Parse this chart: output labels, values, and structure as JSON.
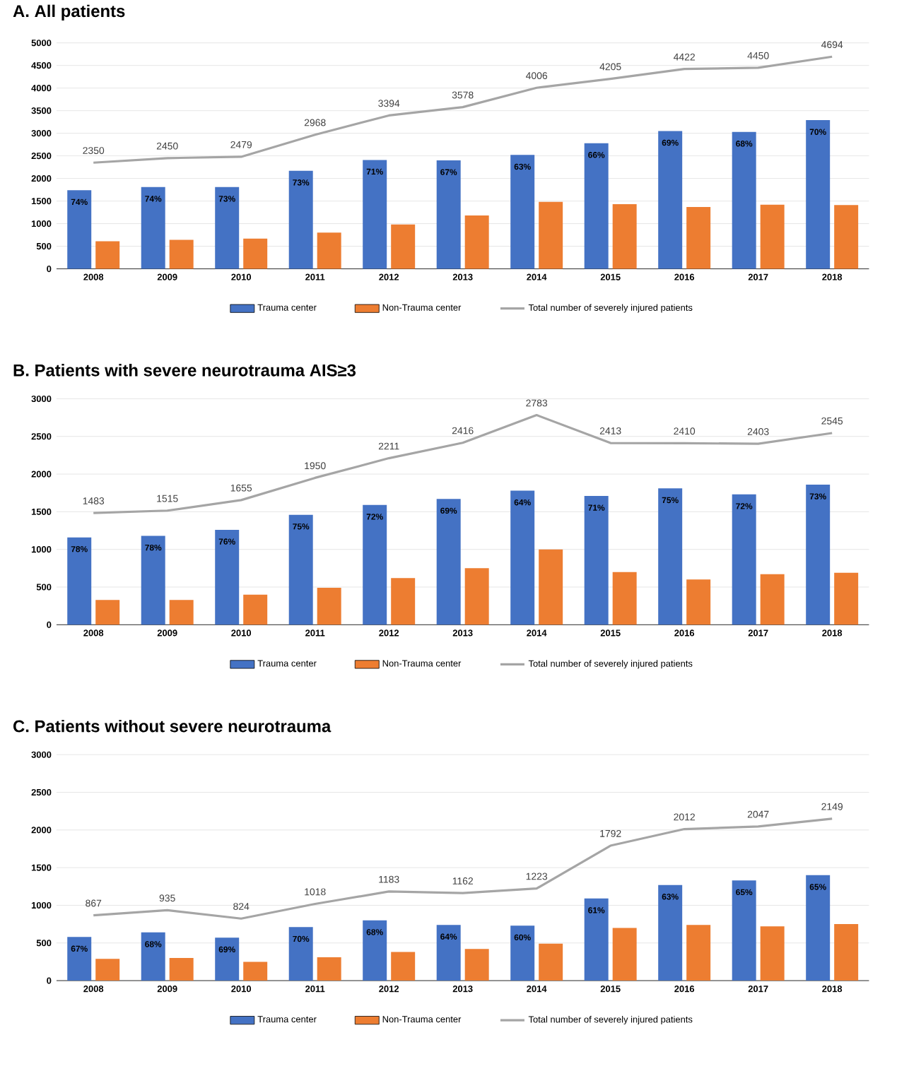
{
  "chart_data": [
    {
      "type": "bar",
      "title": "**A. All patients**",
      "categories": [
        "2008",
        "2009",
        "2010",
        "2011",
        "2012",
        "2013",
        "2014",
        "2015",
        "2016",
        "2017",
        "2018"
      ],
      "ylim": [
        0,
        5000
      ],
      "yticks": [
        0,
        500,
        1000,
        1500,
        2000,
        2500,
        3000,
        3500,
        4000,
        4500,
        5000
      ],
      "grid": "y",
      "legend": "bottom",
      "series": [
        {
          "name": "Trauma center",
          "color": "#4472c4",
          "values": [
            1740,
            1810,
            1810,
            2170,
            2410,
            2400,
            2520,
            2780,
            3050,
            3030,
            3290
          ]
        },
        {
          "name": "Non-Trauma center",
          "color": "#ed7d31",
          "values": [
            610,
            640,
            670,
            800,
            980,
            1180,
            1480,
            1430,
            1370,
            1420,
            1410
          ]
        },
        {
          "name": "Total number of severely injured patients",
          "type": "line",
          "color": "#a5a5a5",
          "values": [
            2350,
            2450,
            2479,
            2968,
            3394,
            3578,
            4006,
            4205,
            4422,
            4450,
            4694
          ],
          "value_labels": [
            "2350",
            "2450",
            "2479",
            "2968",
            "3394",
            "3578",
            "4006",
            "4205",
            "4422",
            "4450",
            "4694"
          ]
        }
      ],
      "annotations": [
        {
          "text": "74%",
          "x": "2008",
          "y": 1740
        },
        {
          "text": "74%",
          "x": "2009",
          "y": 1810
        },
        {
          "text": "73%",
          "x": "2010",
          "y": 1810
        },
        {
          "text": "73%",
          "x": "2011",
          "y": 2170
        },
        {
          "text": "71%",
          "x": "2012",
          "y": 2410
        },
        {
          "text": "67%",
          "x": "2013",
          "y": 2400
        },
        {
          "text": "63%",
          "x": "2014",
          "y": 2520
        },
        {
          "text": "66%",
          "x": "2015",
          "y": 2780
        },
        {
          "text": "69%",
          "x": "2016",
          "y": 3050
        },
        {
          "text": "68%",
          "x": "2017",
          "y": 3030
        },
        {
          "text": "70%",
          "x": "2018",
          "y": 3290
        }
      ]
    },
    {
      "type": "bar",
      "title": "**B. Patients with severe neurotrauma AIS≥3**",
      "categories": [
        "2008",
        "2009",
        "2010",
        "2011",
        "2012",
        "2013",
        "2014",
        "2015",
        "2016",
        "2017",
        "2018"
      ],
      "ylim": [
        0,
        3000
      ],
      "yticks": [
        0,
        500,
        1000,
        1500,
        2000,
        2500,
        3000
      ],
      "grid": "y",
      "legend": "bottom",
      "series": [
        {
          "name": "Trauma center",
          "color": "#4472c4",
          "values": [
            1160,
            1180,
            1260,
            1460,
            1590,
            1670,
            1780,
            1710,
            1810,
            1730,
            1860
          ]
        },
        {
          "name": "Non-Trauma center",
          "color": "#ed7d31",
          "values": [
            330,
            330,
            400,
            490,
            620,
            750,
            1000,
            700,
            600,
            670,
            690
          ]
        },
        {
          "name": "Total number of severely injured patients",
          "type": "line",
          "color": "#a5a5a5",
          "values": [
            1483,
            1515,
            1655,
            1950,
            2211,
            2416,
            2783,
            2413,
            2410,
            2403,
            2545
          ],
          "value_labels": [
            "1483",
            "1515",
            "1655",
            "1950",
            "2211",
            "2416",
            "2783",
            "2413",
            "2410",
            "2403",
            "2545"
          ]
        }
      ],
      "annotations": [
        {
          "text": "78%",
          "x": "2008",
          "y": 1160
        },
        {
          "text": "78%",
          "x": "2009",
          "y": 1180
        },
        {
          "text": "76%",
          "x": "2010",
          "y": 1260
        },
        {
          "text": "75%",
          "x": "2011",
          "y": 1460
        },
        {
          "text": "72%",
          "x": "2012",
          "y": 1590
        },
        {
          "text": "69%",
          "x": "2013",
          "y": 1670
        },
        {
          "text": "64%",
          "x": "2014",
          "y": 1780
        },
        {
          "text": "71%",
          "x": "2015",
          "y": 1710
        },
        {
          "text": "75%",
          "x": "2016",
          "y": 1810
        },
        {
          "text": "72%",
          "x": "2017",
          "y": 1730
        },
        {
          "text": "73%",
          "x": "2018",
          "y": 1860
        }
      ]
    },
    {
      "type": "bar",
      "title": "**C. Patients without severe neurotrauma**",
      "categories": [
        "2008",
        "2009",
        "2010",
        "2011",
        "2012",
        "2013",
        "2014",
        "2015",
        "2016",
        "2017",
        "2018"
      ],
      "ylim": [
        0,
        3000
      ],
      "yticks": [
        0,
        500,
        1000,
        1500,
        2000,
        2500,
        3000
      ],
      "grid": "y",
      "legend": "bottom",
      "series": [
        {
          "name": "Trauma center",
          "color": "#4472c4",
          "values": [
            580,
            640,
            570,
            710,
            800,
            740,
            730,
            1090,
            1270,
            1330,
            1400
          ]
        },
        {
          "name": "Non-Trauma center",
          "color": "#ed7d31",
          "values": [
            290,
            300,
            250,
            310,
            380,
            420,
            490,
            700,
            740,
            720,
            750
          ]
        },
        {
          "name": "Total number of severely injured patients",
          "type": "line",
          "color": "#a5a5a5",
          "values": [
            867,
            935,
            824,
            1018,
            1183,
            1162,
            1223,
            1792,
            2012,
            2047,
            2149
          ],
          "value_labels": [
            "867",
            "935",
            "824",
            "1018",
            "1183",
            "1162",
            "1223",
            "1792",
            "2012",
            "2047",
            "2149"
          ]
        }
      ],
      "annotations": [
        {
          "text": "67%",
          "x": "2008",
          "y": 580
        },
        {
          "text": "68%",
          "x": "2009",
          "y": 640
        },
        {
          "text": "69%",
          "x": "2010",
          "y": 570
        },
        {
          "text": "70%",
          "x": "2011",
          "y": 710
        },
        {
          "text": "68%",
          "x": "2012",
          "y": 800
        },
        {
          "text": "64%",
          "x": "2013",
          "y": 740
        },
        {
          "text": "60%",
          "x": "2014",
          "y": 730
        },
        {
          "text": "61%",
          "x": "2015",
          "y": 1090
        },
        {
          "text": "63%",
          "x": "2016",
          "y": 1270
        },
        {
          "text": "65%",
          "x": "2017",
          "y": 1330
        },
        {
          "text": "65%",
          "x": "2018",
          "y": 1400
        }
      ]
    }
  ]
}
